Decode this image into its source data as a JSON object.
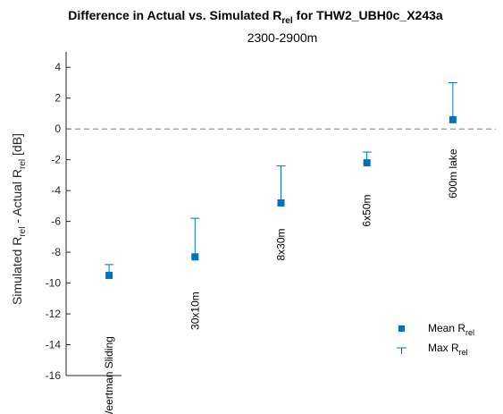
{
  "chart_data": {
    "type": "scatter",
    "title": "Difference in Actual vs. Simulated R",
    "title_sub": "rel",
    "title_tail": " for THW2_UBH0c_X243a",
    "subtitle": "2300-2900m",
    "ylabel": {
      "part1": "Simulated R",
      "sub1": "rel",
      "part2": " - Actual R",
      "sub2": "rel",
      "part3": " [dB]"
    },
    "xlim": [
      0.5,
      5.5
    ],
    "ylim": [
      -16,
      5
    ],
    "yticks": [
      -16,
      -14,
      -12,
      -10,
      -8,
      -6,
      -4,
      -2,
      0,
      2,
      4
    ],
    "reference_line": {
      "y": 0,
      "style": "dashed"
    },
    "categories": [
      "Weertman Sliding",
      "30x10m",
      "8x30m",
      "6x50m",
      "600m lake"
    ],
    "series": [
      {
        "name": "Mean R",
        "name_sub": "rel",
        "marker": "square",
        "values": [
          -9.5,
          -8.3,
          -4.8,
          -2.2,
          0.6
        ]
      },
      {
        "name": "Max R",
        "name_sub": "rel",
        "marker": "errorbar-cap",
        "values": [
          -8.8,
          -5.8,
          -2.4,
          -1.5,
          3.0
        ]
      }
    ],
    "annotations": [
      {
        "text": "Weertman Sliding",
        "x": 1,
        "y": -16.2
      },
      {
        "text": "30x10m",
        "x": 2,
        "y": -11.8
      },
      {
        "text": "8x30m",
        "x": 3,
        "y": -7.5
      },
      {
        "text": "6x50m",
        "x": 4,
        "y": -5.3
      },
      {
        "text": "600m lake",
        "x": 5,
        "y": -2.9
      }
    ],
    "legend_position": "bottom-right",
    "colors": {
      "marker": "#0072BD",
      "axis": "#262626",
      "refline": "#808080"
    }
  }
}
